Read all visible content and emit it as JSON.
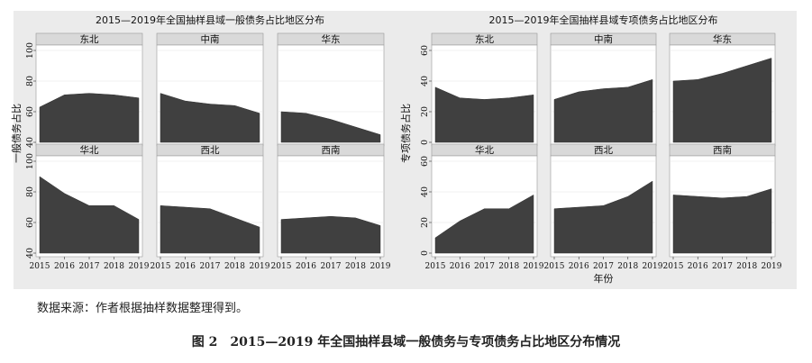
{
  "chart_data": [
    {
      "type": "area",
      "title": "2015—2019年全国抽样县域一般债务占比地区分布",
      "ylabel": "一般债务占比",
      "xlabel": "",
      "x": [
        2015,
        2016,
        2017,
        2018,
        2019
      ],
      "ylim": [
        40,
        100
      ],
      "yticks": [
        40,
        60,
        80,
        100
      ],
      "panels": [
        {
          "name": "东北",
          "values": [
            63,
            71,
            72,
            71,
            69
          ]
        },
        {
          "name": "中南",
          "values": [
            72,
            67,
            65,
            64,
            59
          ]
        },
        {
          "name": "华东",
          "values": [
            60,
            59,
            55,
            50,
            45
          ]
        },
        {
          "name": "华北",
          "values": [
            90,
            79,
            71,
            71,
            62
          ]
        },
        {
          "name": "西北",
          "values": [
            71,
            70,
            69,
            63,
            57
          ]
        },
        {
          "name": "西南",
          "values": [
            62,
            63,
            64,
            63,
            58
          ]
        }
      ]
    },
    {
      "type": "area",
      "title": "2015—2019年全国抽样县域专项债务占比地区分布",
      "ylabel": "专项债务占比",
      "xlabel": "年份",
      "x": [
        2015,
        2016,
        2017,
        2018,
        2019
      ],
      "ylim": [
        0,
        60
      ],
      "yticks": [
        0,
        20,
        40,
        60
      ],
      "panels": [
        {
          "name": "东北",
          "values": [
            36,
            29,
            28,
            29,
            31
          ]
        },
        {
          "name": "中南",
          "values": [
            28,
            33,
            35,
            36,
            41
          ]
        },
        {
          "name": "华东",
          "values": [
            40,
            41,
            45,
            50,
            55
          ]
        },
        {
          "name": "华北",
          "values": [
            10,
            21,
            29,
            29,
            38
          ]
        },
        {
          "name": "西北",
          "values": [
            29,
            30,
            31,
            37,
            47
          ]
        },
        {
          "name": "西南",
          "values": [
            38,
            37,
            36,
            37,
            42
          ]
        }
      ]
    }
  ],
  "colors": {
    "area_fill": "#404040",
    "panel_header": "#d9d9d9",
    "figure_bg": "#ebebeb",
    "plot_bg": "#ffffff"
  },
  "source_note": "数据来源：作者根据抽样数据整理得到。",
  "figure_title": "图 2　2015—2019 年全国抽样县域一般债务与专项债务占比地区分布情况"
}
